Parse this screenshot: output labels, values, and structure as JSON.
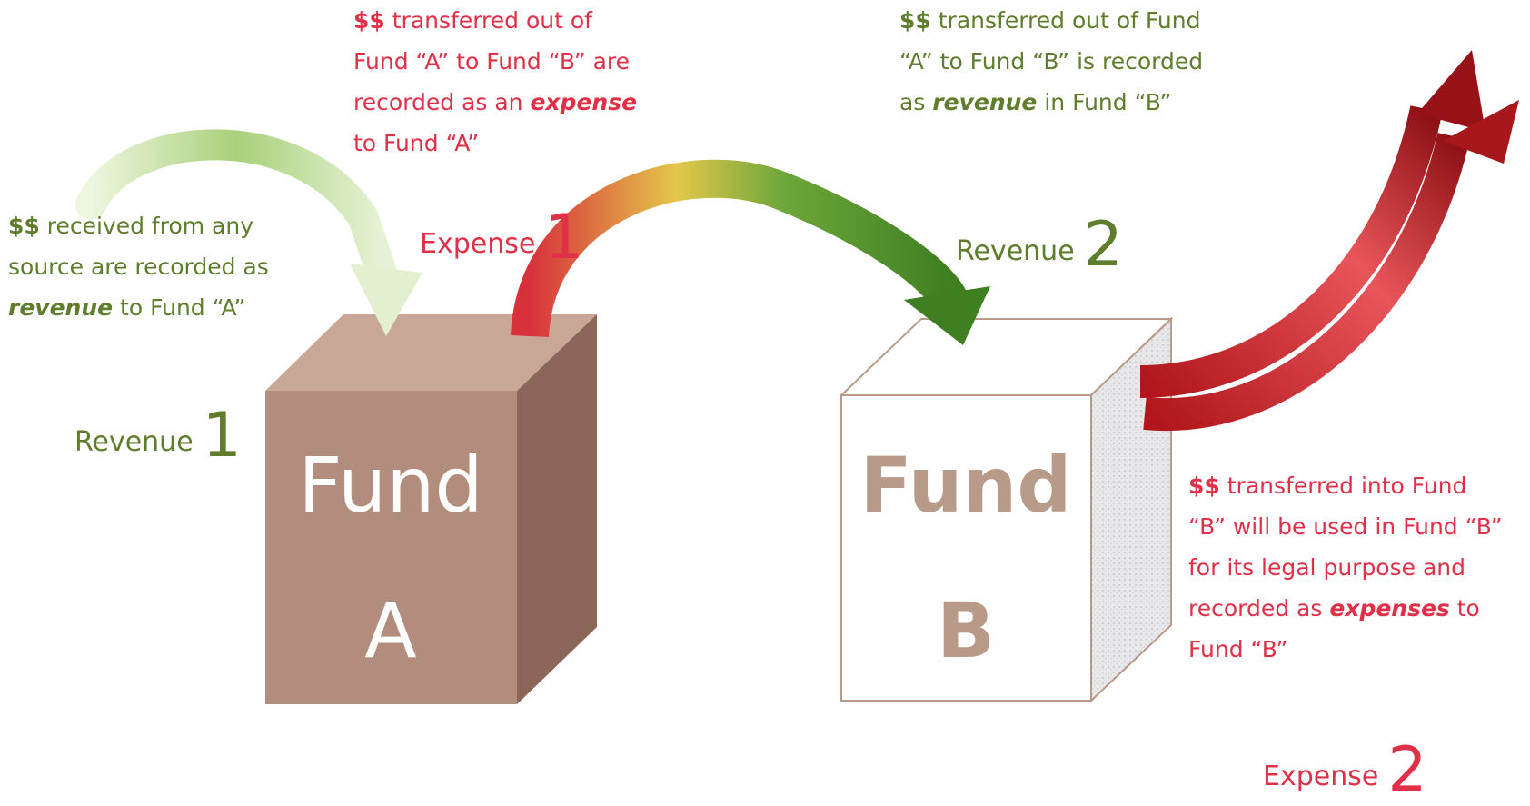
{
  "notes": [
    {
      "parts": [
        "$$",
        " received from any source are recorded as ",
        "revenue",
        " to Fund “A”"
      ]
    },
    {
      "parts": [
        "$$",
        " transferred out of Fund “A” to Fund “B” are  recorded as an ",
        "expense",
        " to Fund “A”"
      ]
    },
    {
      "parts": [
        "$$",
        " transferred out of Fund “A” to Fund “B” is recorded as ",
        "revenue",
        " in Fund “B”"
      ]
    },
    {
      "parts": [
        "$$",
        " transferred into Fund “B” will be used in Fund “B” for its legal purpose and recorded as ",
        "expenses",
        " to Fund “B”"
      ]
    }
  ],
  "labels": [
    {
      "text": "Revenue",
      "number": "1"
    },
    {
      "text": "Expense",
      "number": "1"
    },
    {
      "text": "Revenue",
      "number": "2"
    },
    {
      "text": "Expense",
      "number": "2"
    }
  ],
  "funds": [
    {
      "word": "Fund",
      "letter": "A"
    },
    {
      "word": "Fund",
      "letter": "B"
    }
  ]
}
